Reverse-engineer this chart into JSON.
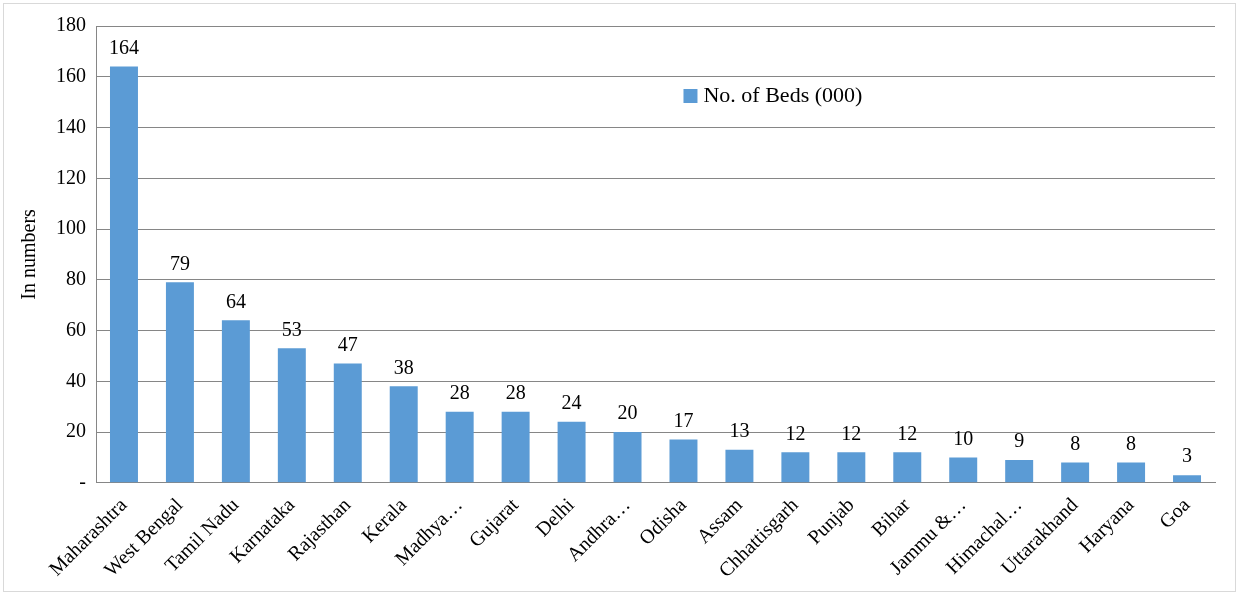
{
  "chart_data": {
    "type": "bar",
    "ylabel": "In numbers",
    "categories": [
      "Maharashtra",
      "West Bengal",
      "Tamil Nadu",
      "Karnataka",
      "Rajasthan",
      "Kerala",
      "Madhya…",
      "Gujarat",
      "Delhi",
      "Andhra…",
      "Odisha",
      "Assam",
      "Chhattisgarh",
      "Punjab",
      "Bihar",
      "Jammu &…",
      "Himachal…",
      "Uttarakhand",
      "Haryana",
      "Goa"
    ],
    "series": [
      {
        "name": "No. of Beds (000)",
        "color": "#5b9bd5",
        "values": [
          164,
          79,
          64,
          53,
          47,
          38,
          28,
          28,
          24,
          20,
          17,
          13,
          12,
          12,
          12,
          10,
          9,
          8,
          8,
          3
        ]
      }
    ],
    "ylim": [
      0,
      180
    ],
    "yticks": [
      {
        "value": 0,
        "label": "-"
      },
      20,
      40,
      60,
      80,
      100,
      120,
      140,
      160,
      180
    ],
    "grid": "y",
    "legend": "top right",
    "data_labels": true
  }
}
